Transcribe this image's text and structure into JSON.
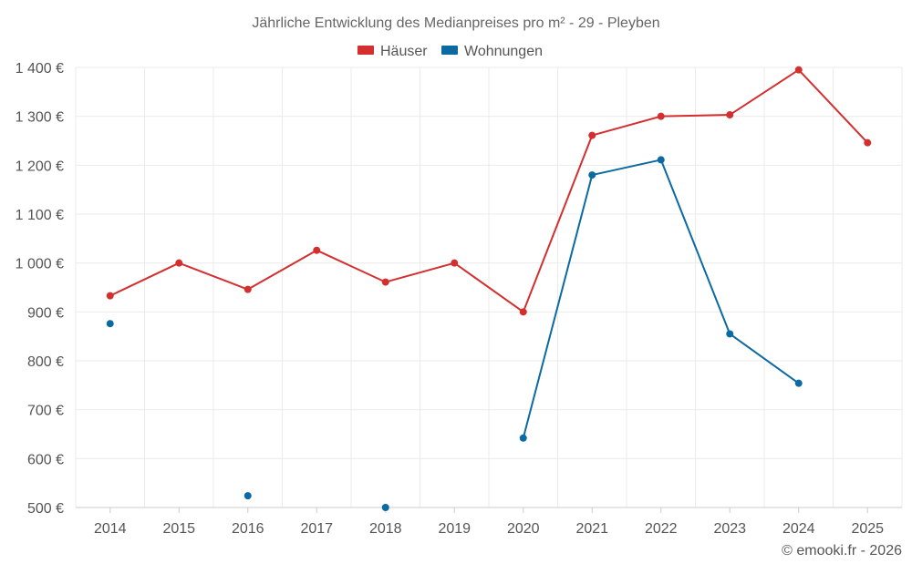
{
  "chart_data": {
    "type": "line",
    "title": "Jährliche Entwicklung des Medianpreises pro m² - 29 - Pleyben",
    "categories": [
      "2014",
      "2015",
      "2016",
      "2017",
      "2018",
      "2019",
      "2020",
      "2021",
      "2022",
      "2023",
      "2024",
      "2025"
    ],
    "y_ticks": [
      500,
      600,
      700,
      800,
      900,
      1000,
      1100,
      1200,
      1300,
      1400
    ],
    "y_tick_labels": [
      "500 €",
      "600 €",
      "700 €",
      "800 €",
      "900 €",
      "1 000 €",
      "1 100 €",
      "1 200 €",
      "1 300 €",
      "1 400 €"
    ],
    "ylim": [
      500,
      1400
    ],
    "grid": true,
    "legend_position": "top-center",
    "series": [
      {
        "name": "Häuser",
        "color": "#d32f2f",
        "values": [
          933,
          1000,
          946,
          1026,
          961,
          1000,
          900,
          1261,
          1300,
          1303,
          1395,
          1246
        ]
      },
      {
        "name": "Wohnungen",
        "color": "#0a6aa1",
        "values": [
          876,
          null,
          524,
          null,
          500,
          null,
          642,
          1180,
          1211,
          855,
          754,
          null
        ]
      }
    ],
    "credit": "© emooki.fr - 2026"
  }
}
